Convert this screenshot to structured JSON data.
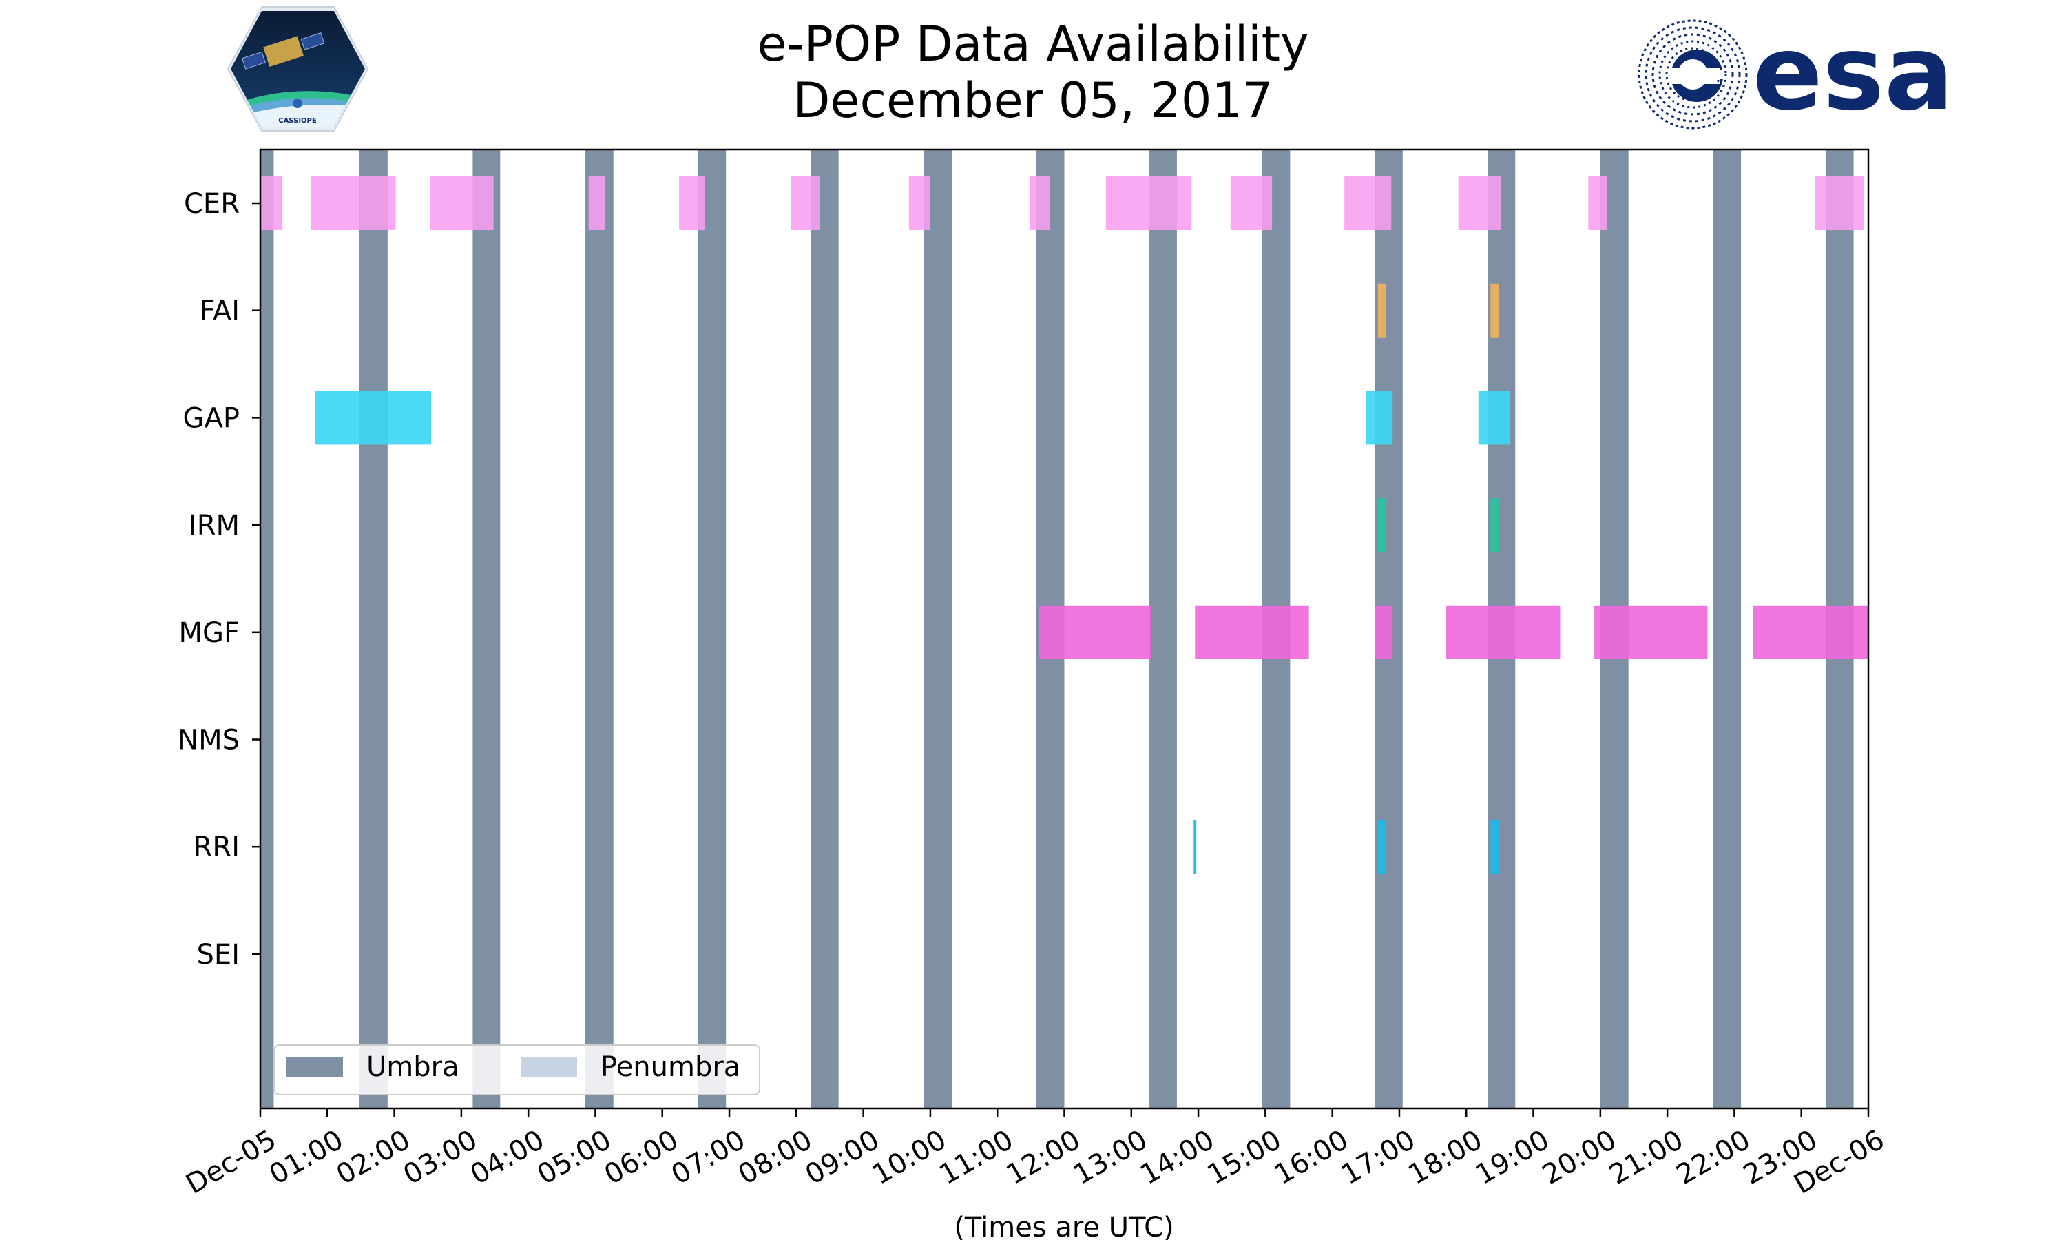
{
  "header": {
    "title_line1": "e-POP Data Availability",
    "title_line2": "December 05, 2017",
    "mission_logo_text": "CASSIOPE",
    "agency_logo_text": "esa"
  },
  "chart_data": {
    "type": "timeline",
    "title": "e-POP Data Availability December 05, 2017",
    "xlabel": "(Times are UTC)",
    "ylabel": "",
    "x_range_hours": [
      0,
      24
    ],
    "x_tick_labels": [
      "Dec-05",
      "01:00",
      "02:00",
      "03:00",
      "04:00",
      "05:00",
      "06:00",
      "07:00",
      "08:00",
      "09:00",
      "10:00",
      "11:00",
      "12:00",
      "13:00",
      "14:00",
      "15:00",
      "16:00",
      "17:00",
      "18:00",
      "19:00",
      "20:00",
      "21:00",
      "22:00",
      "23:00",
      "Dec-06"
    ],
    "instruments": [
      "CER",
      "FAI",
      "GAP",
      "IRM",
      "MGF",
      "NMS",
      "RRI",
      "SEI"
    ],
    "legend": {
      "position": "lower-left",
      "entries": [
        {
          "label": "Umbra",
          "color": "#8090a4"
        },
        {
          "label": "Penumbra",
          "color": "#c5d3e3"
        }
      ]
    },
    "umbra_intervals": [
      [
        0.0,
        0.2
      ],
      [
        1.48,
        1.9
      ],
      [
        3.17,
        3.58
      ],
      [
        4.85,
        5.27
      ],
      [
        6.53,
        6.95
      ],
      [
        8.22,
        8.63
      ],
      [
        9.9,
        10.32
      ],
      [
        11.58,
        12.0
      ],
      [
        13.27,
        13.68
      ],
      [
        14.95,
        15.37
      ],
      [
        16.63,
        17.05
      ],
      [
        18.32,
        18.73
      ],
      [
        20.0,
        20.42
      ],
      [
        21.68,
        22.1
      ],
      [
        23.37,
        23.78
      ]
    ],
    "series": [
      {
        "name": "CER",
        "color": "#f89ef0",
        "opacity": 0.88,
        "intervals": [
          [
            0.0,
            0.33
          ],
          [
            0.75,
            2.02
          ],
          [
            2.53,
            3.48
          ],
          [
            4.9,
            5.15
          ],
          [
            6.25,
            6.63
          ],
          [
            7.92,
            8.35
          ],
          [
            9.68,
            10.0
          ],
          [
            11.48,
            11.78
          ],
          [
            12.62,
            13.9
          ],
          [
            14.48,
            15.1
          ],
          [
            16.18,
            16.88
          ],
          [
            17.88,
            18.52
          ],
          [
            19.82,
            20.1
          ],
          [
            23.2,
            23.93
          ]
        ]
      },
      {
        "name": "FAI",
        "color": "#f2b25a",
        "opacity": 0.9,
        "intervals": [
          [
            16.68,
            16.8
          ],
          [
            18.36,
            18.48
          ]
        ]
      },
      {
        "name": "GAP",
        "color": "#3dd6f5",
        "opacity": 0.92,
        "intervals": [
          [
            0.82,
            2.55
          ],
          [
            16.5,
            16.9
          ],
          [
            18.18,
            18.65
          ]
        ]
      },
      {
        "name": "IRM",
        "color": "#28c4a0",
        "opacity": 0.95,
        "intervals": [
          [
            16.68,
            16.8
          ],
          [
            18.36,
            18.48
          ]
        ]
      },
      {
        "name": "MGF",
        "color": "#ee66dc",
        "opacity": 0.9,
        "intervals": [
          [
            11.62,
            13.3
          ],
          [
            13.95,
            15.65
          ],
          [
            16.63,
            16.9
          ],
          [
            17.7,
            19.4
          ],
          [
            19.9,
            21.6
          ],
          [
            22.28,
            24.0
          ]
        ]
      },
      {
        "name": "NMS",
        "color": "#999999",
        "opacity": 0.9,
        "intervals": []
      },
      {
        "name": "RRI",
        "color": "#22b8e6",
        "opacity": 0.95,
        "intervals": [
          [
            13.93,
            13.97
          ],
          [
            16.68,
            16.8
          ],
          [
            18.36,
            18.48
          ]
        ]
      },
      {
        "name": "SEI",
        "color": "#999999",
        "opacity": 0.9,
        "intervals": []
      }
    ]
  }
}
